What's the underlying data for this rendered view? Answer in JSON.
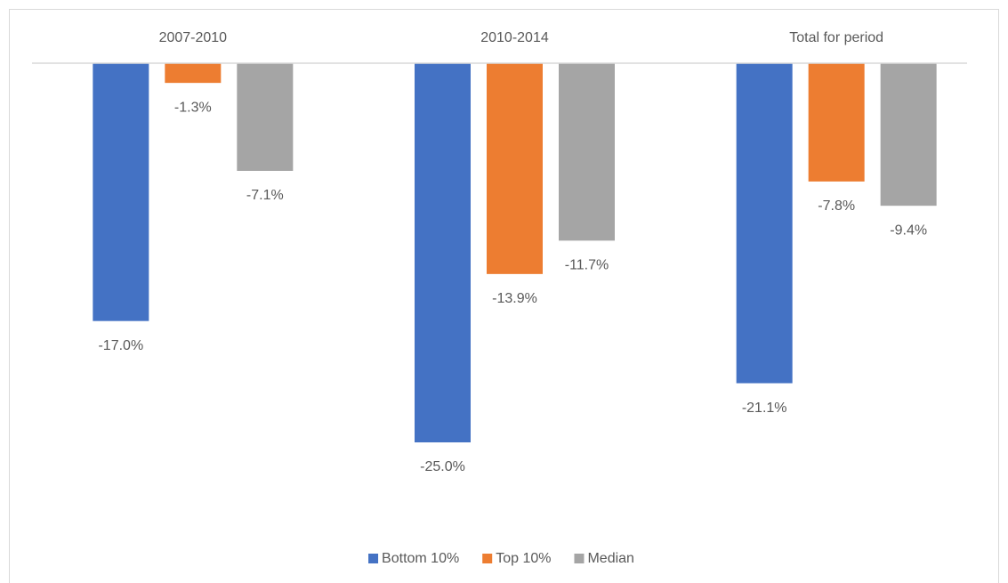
{
  "chart_data": {
    "type": "bar",
    "categories": [
      "2007-2010",
      "2010-2014",
      "Total for period"
    ],
    "series": [
      {
        "name": "Bottom 10%",
        "color": "#4472c4",
        "values": [
          -17.0,
          -25.0,
          -21.1
        ],
        "value_labels": [
          "-17.0%",
          "-25.0%",
          "-21.1%"
        ]
      },
      {
        "name": "Top 10%",
        "color": "#ed7d31",
        "values": [
          -1.3,
          -13.9,
          -7.8
        ],
        "value_labels": [
          "-1.3%",
          "-13.9%",
          "-7.8%"
        ]
      },
      {
        "name": "Median",
        "color": "#a5a5a5",
        "values": [
          -7.1,
          -11.7,
          -9.4
        ],
        "value_labels": [
          "-7.1%",
          "-11.7%",
          "-9.4%"
        ]
      }
    ],
    "ylim": [
      -25,
      0
    ],
    "legend": "bottom"
  }
}
